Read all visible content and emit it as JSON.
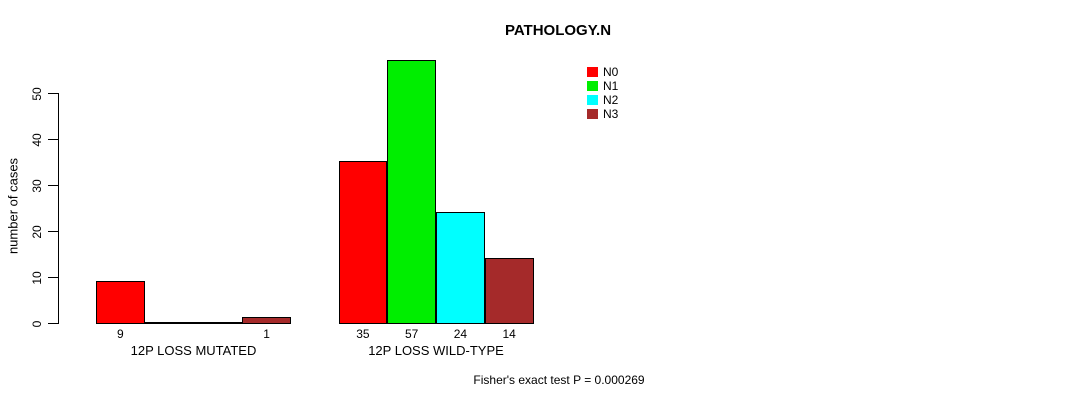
{
  "chart_data": {
    "type": "bar",
    "title": "PATHOLOGY.N",
    "ylabel": "number of cases",
    "xlabel": "",
    "yticks": [
      0,
      10,
      20,
      30,
      40,
      50
    ],
    "ylim": [
      0,
      57
    ],
    "grid": false,
    "legend_position": "top-right",
    "categories": [
      "12P LOSS MUTATED",
      "12P LOSS WILD-TYPE"
    ],
    "series": [
      {
        "name": "N0",
        "color": "#FF0000",
        "values": [
          9,
          35
        ]
      },
      {
        "name": "N1",
        "color": "#00EE00",
        "values": [
          0,
          57
        ]
      },
      {
        "name": "N2",
        "color": "#00FFFF",
        "values": [
          0,
          24
        ]
      },
      {
        "name": "N3",
        "color": "#A52A2A",
        "values": [
          1,
          14
        ]
      }
    ],
    "bar_labels": [
      [
        9,
        null,
        null,
        1
      ],
      [
        35,
        57,
        24,
        14
      ]
    ],
    "annotation": "Fisher's exact test P = 0.000269",
    "bar_border_color": "#000000",
    "text_color": "#000000"
  }
}
